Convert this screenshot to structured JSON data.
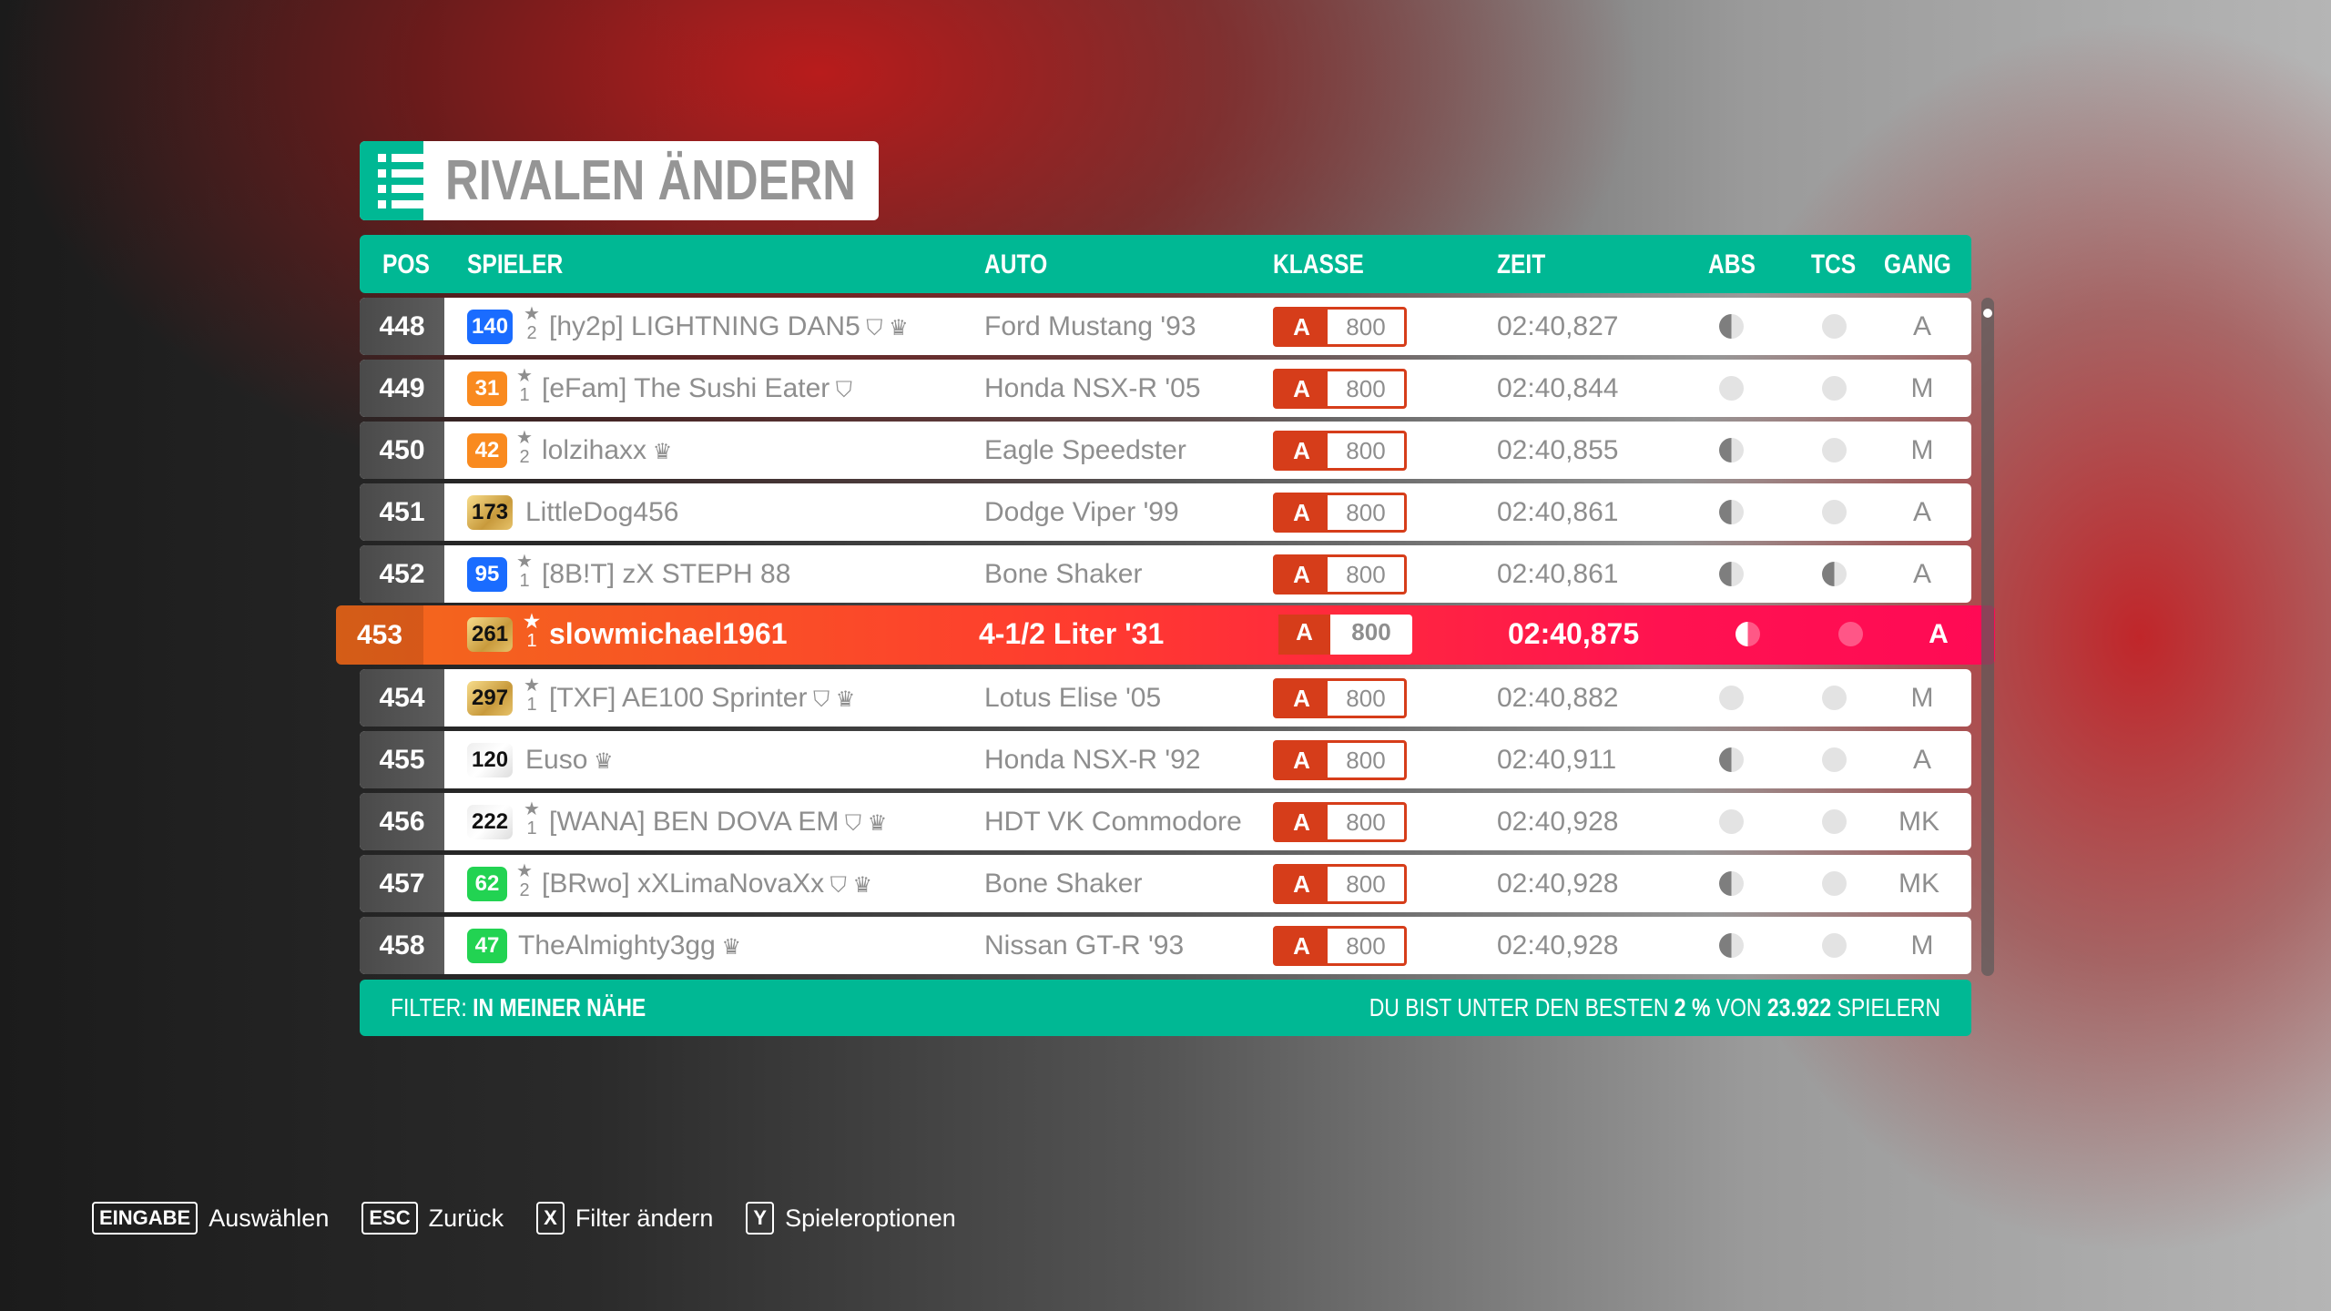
{
  "title": "RIVALEN ÄNDERN",
  "title_icon": "list-icon",
  "columns": {
    "pos": "POS",
    "player": "SPIELER",
    "car": "AUTO",
    "class": "KLASSE",
    "time": "ZEIT",
    "abs": "ABS",
    "tcs": "TCS",
    "gear": "GANG"
  },
  "colors": {
    "accent": "#00b894",
    "class_a": "#d63d1a",
    "highlight": "#ff3b2f",
    "blue": "#1a6cff",
    "orange": "#f98a1f",
    "green": "#22d352"
  },
  "rows": [
    {
      "pos": "448",
      "level": "140",
      "level_style": "blue",
      "stars": "2",
      "player": "[hy2p] LIGHTNING DAN5",
      "icons": [
        "shield",
        "crown"
      ],
      "car": "Ford Mustang '93",
      "class": "A",
      "pi": "800",
      "time": "02:40,827",
      "abs": "half",
      "tcs": "off",
      "gear": "A"
    },
    {
      "pos": "449",
      "level": "31",
      "level_style": "orange",
      "stars": "1",
      "player": "[eFam] The Sushi Eater",
      "icons": [
        "shield"
      ],
      "car": "Honda NSX-R '05",
      "class": "A",
      "pi": "800",
      "time": "02:40,844",
      "abs": "off",
      "tcs": "off",
      "gear": "M"
    },
    {
      "pos": "450",
      "level": "42",
      "level_style": "orange",
      "stars": "2",
      "player": "lolzihaxx",
      "icons": [
        "crown"
      ],
      "car": "Eagle Speedster",
      "class": "A",
      "pi": "800",
      "time": "02:40,855",
      "abs": "half",
      "tcs": "off",
      "gear": "M"
    },
    {
      "pos": "451",
      "level": "173",
      "level_style": "gold",
      "stars": "",
      "player": "LittleDog456",
      "icons": [],
      "car": "Dodge Viper '99",
      "class": "A",
      "pi": "800",
      "time": "02:40,861",
      "abs": "half",
      "tcs": "off",
      "gear": "A"
    },
    {
      "pos": "452",
      "level": "95",
      "level_style": "blue",
      "stars": "1",
      "player": "[8B!T] zX STEPH 88",
      "icons": [],
      "car": "Bone Shaker",
      "class": "A",
      "pi": "800",
      "time": "02:40,861",
      "abs": "half",
      "tcs": "half",
      "gear": "A"
    },
    {
      "pos": "453",
      "level": "261",
      "level_style": "gold",
      "stars": "1",
      "player": "slowmichael1961",
      "icons": [],
      "car": "4-1/2 Liter '31",
      "class": "A",
      "pi": "800",
      "time": "02:40,875",
      "abs": "half",
      "tcs": "off",
      "gear": "A",
      "is_me": true
    },
    {
      "pos": "454",
      "level": "297",
      "level_style": "gold",
      "stars": "1",
      "player": "[TXF] AE100 Sprinter",
      "icons": [
        "shield",
        "crown"
      ],
      "car": "Lotus Elise '05",
      "class": "A",
      "pi": "800",
      "time": "02:40,882",
      "abs": "off",
      "tcs": "off",
      "gear": "M"
    },
    {
      "pos": "455",
      "level": "120",
      "level_style": "silver",
      "stars": "",
      "player": "Euso",
      "icons": [
        "crown"
      ],
      "car": "Honda NSX-R '92",
      "class": "A",
      "pi": "800",
      "time": "02:40,911",
      "abs": "half",
      "tcs": "off",
      "gear": "A"
    },
    {
      "pos": "456",
      "level": "222",
      "level_style": "silver",
      "stars": "1",
      "player": "[WANA] BEN DOVA EM",
      "icons": [
        "shield",
        "crown"
      ],
      "car": "HDT VK Commodore",
      "class": "A",
      "pi": "800",
      "time": "02:40,928",
      "abs": "off",
      "tcs": "off",
      "gear": "MK"
    },
    {
      "pos": "457",
      "level": "62",
      "level_style": "green",
      "stars": "2",
      "player": "[BRwo] xXLimaNovaXx",
      "icons": [
        "shield",
        "crown"
      ],
      "car": "Bone Shaker",
      "class": "A",
      "pi": "800",
      "time": "02:40,928",
      "abs": "half",
      "tcs": "off",
      "gear": "MK"
    },
    {
      "pos": "458",
      "level": "47",
      "level_style": "green",
      "stars": "",
      "player": "TheAlmighty3gg",
      "icons": [
        "crown"
      ],
      "car": "Nissan GT-R '93",
      "class": "A",
      "pi": "800",
      "time": "02:40,928",
      "abs": "half",
      "tcs": "off",
      "gear": "M"
    }
  ],
  "footer": {
    "filter_label": "FILTER:",
    "filter_value": "IN MEINER NÄHE",
    "rank_prefix": "DU BIST UNTER DEN BESTEN",
    "rank_percent": "2 %",
    "rank_mid": "VON",
    "rank_total": "23.922",
    "rank_suffix": "SPIELERN"
  },
  "hints": [
    {
      "key": "EINGABE",
      "label": "Auswählen"
    },
    {
      "key": "ESC",
      "label": "Zurück"
    },
    {
      "key": "X",
      "label": "Filter ändern"
    },
    {
      "key": "Y",
      "label": "Spieleroptionen"
    }
  ]
}
